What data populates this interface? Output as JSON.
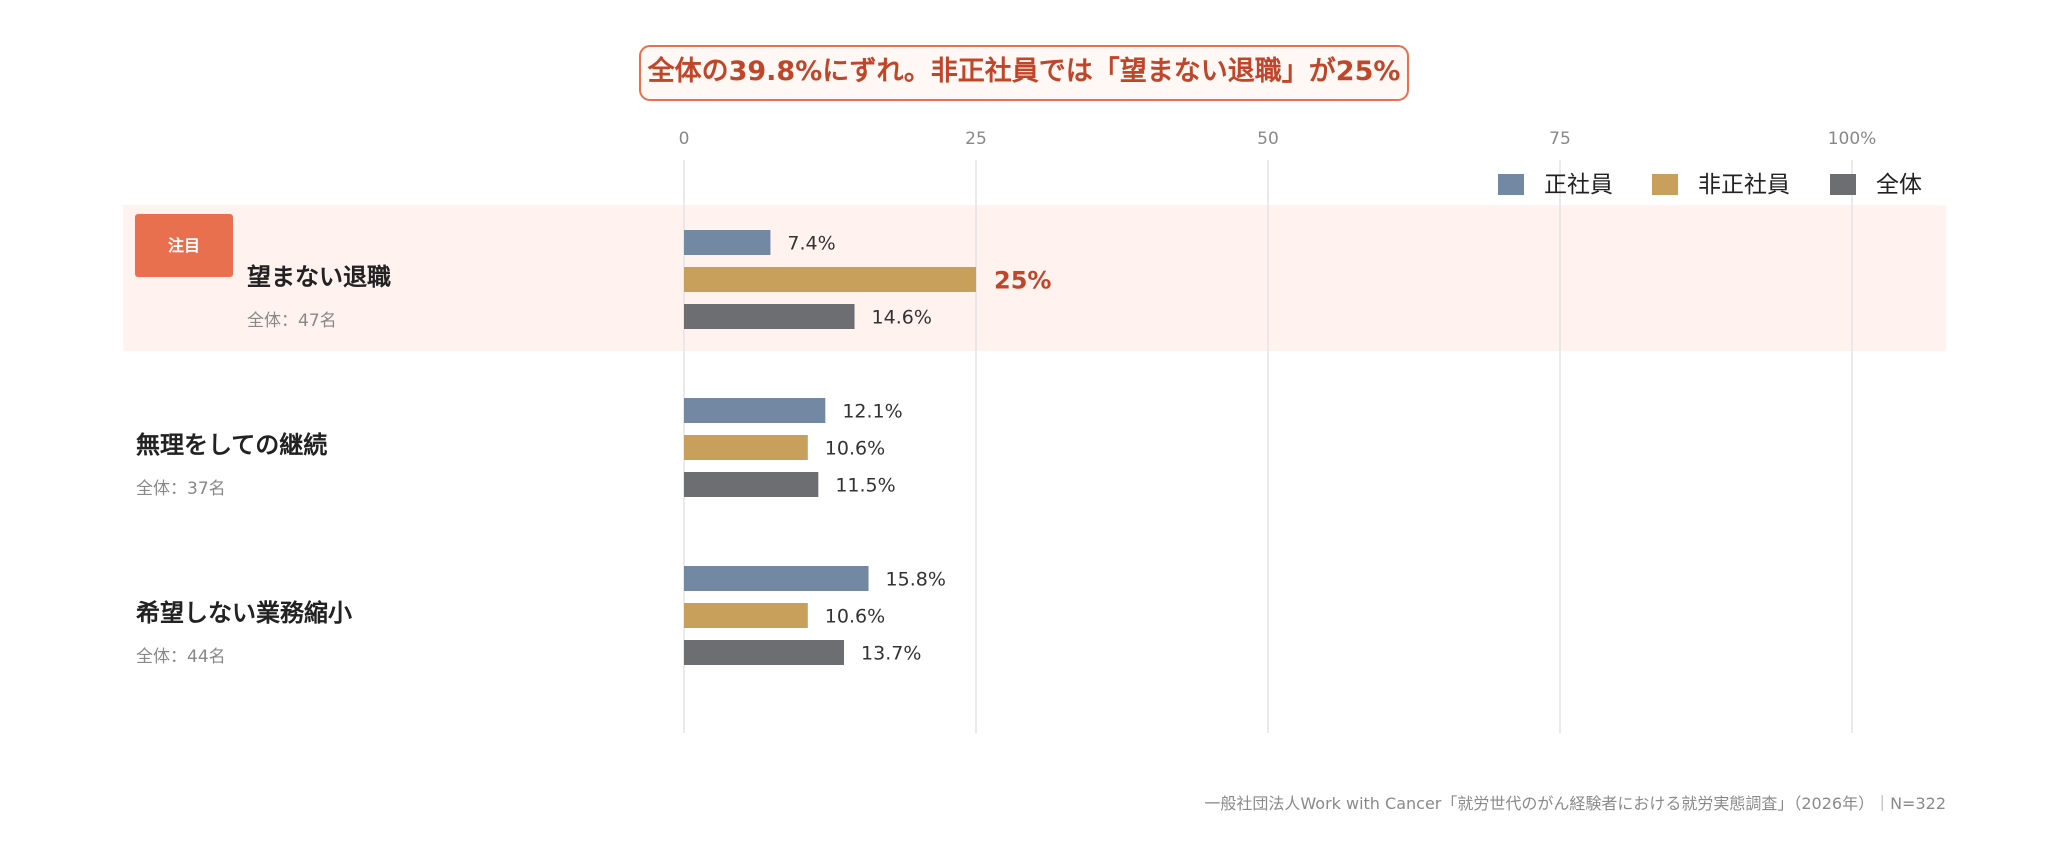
{
  "headline": "全体の39.8%にずれ。非正社員では「望まない退職」が25%",
  "badge_label": "注目",
  "source": "一般社団法人Work with Cancer「就労世代のがん経験者における就労実態調査」（2026年）｜N=322",
  "colors": {
    "seishain": "#7388a3",
    "hiseishain": "#c8a05b",
    "zentai": "#6d6e71",
    "accent": "#e8704f",
    "highlight_bg": "#fff2ef",
    "highlight_text": "#c0462a",
    "grid": "#e3e3e3",
    "tick_text": "#888888",
    "label_text": "#222222",
    "sub_text": "#888888",
    "value_text": "#333333"
  },
  "chart_data": {
    "type": "bar",
    "orientation": "horizontal",
    "title": "全体の39.8%にずれ。非正社員では「望まない退職」が25%",
    "xlim": [
      0,
      100
    ],
    "x_ticks": [
      0,
      25,
      50,
      75,
      100
    ],
    "x_tick_labels": [
      "0",
      "25",
      "50",
      "75",
      "100%"
    ],
    "grid": true,
    "legend_position": "top-right",
    "categories": [
      {
        "label": "望まない退職",
        "sub": "全体：47名",
        "highlight": true
      },
      {
        "label": "無理をしての継続",
        "sub": "全体：37名",
        "highlight": false
      },
      {
        "label": "希望しない業務縮小",
        "sub": "全体：44名",
        "highlight": false
      }
    ],
    "series": [
      {
        "name": "正社員",
        "color_key": "seishain",
        "values": [
          7.4,
          12.1,
          15.8
        ],
        "labels": [
          "7.4%",
          "12.1%",
          "15.8%"
        ]
      },
      {
        "name": "非正社員",
        "color_key": "hiseishain",
        "values": [
          25,
          10.6,
          10.6
        ],
        "labels": [
          "25%",
          "10.6%",
          "10.6%"
        ]
      },
      {
        "name": "全体",
        "color_key": "zentai",
        "values": [
          14.6,
          11.5,
          13.7
        ],
        "labels": [
          "14.6%",
          "11.5%",
          "13.7%"
        ]
      }
    ],
    "emphasis": {
      "category_index": 0,
      "series_index": 1
    }
  }
}
